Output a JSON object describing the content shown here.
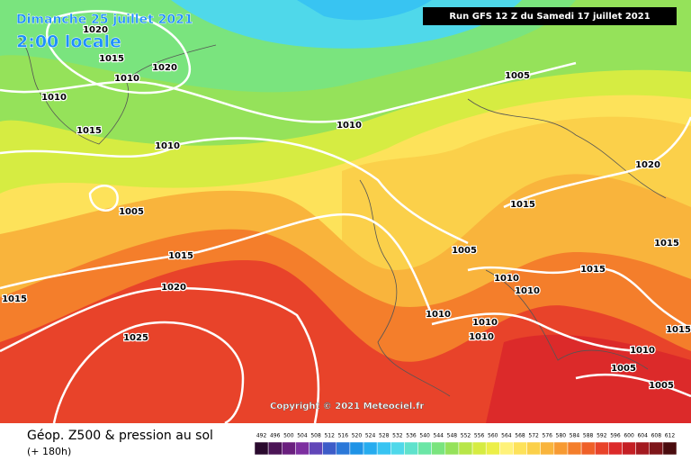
{
  "header": {
    "date": "Dimanche 25 juillet 2021",
    "time": "2:00 locale",
    "run": "Run GFS 12 Z du Samedi 17 juillet 2021"
  },
  "copyright": "Copyright © 2021 Meteociel.fr",
  "footer": {
    "title": "Géop. Z500 & pression au sol",
    "lead": "(+ 180h)"
  },
  "colorbar": {
    "labels": [
      492,
      496,
      500,
      504,
      508,
      512,
      516,
      520,
      524,
      528,
      532,
      536,
      540,
      544,
      548,
      552,
      556,
      560,
      564,
      568,
      572,
      576,
      580,
      584,
      588,
      592,
      596,
      600,
      604,
      608,
      612
    ],
    "colors": [
      "#2a0a2e",
      "#4b1456",
      "#6a1f7e",
      "#7d2fa0",
      "#6146b8",
      "#3d5cc8",
      "#2b78d8",
      "#1f93e6",
      "#26acef",
      "#38c4f2",
      "#4fd8ea",
      "#5fe2cc",
      "#6be6a6",
      "#7ae47e",
      "#95e25a",
      "#b8e648",
      "#d6ec42",
      "#ecef48",
      "#fff27a",
      "#fde25a",
      "#fbd04a",
      "#f9b43c",
      "#f79a32",
      "#f47e2b",
      "#ef6028",
      "#e8432a",
      "#dc2a2a",
      "#c41f24",
      "#a31a20",
      "#7e161a",
      "#4a0c0e"
    ]
  },
  "isobar_labels": [
    "1020",
    "1015",
    "1020",
    "1010",
    "1010",
    "1015",
    "1010",
    "1010",
    "1005",
    "1005",
    "1015",
    "1020",
    "1025",
    "1015",
    "1005",
    "1015",
    "1020",
    "1010",
    "1010",
    "1015",
    "1010",
    "1010",
    "1010",
    "1010",
    "1005",
    "1005",
    "1015",
    "1015"
  ]
}
